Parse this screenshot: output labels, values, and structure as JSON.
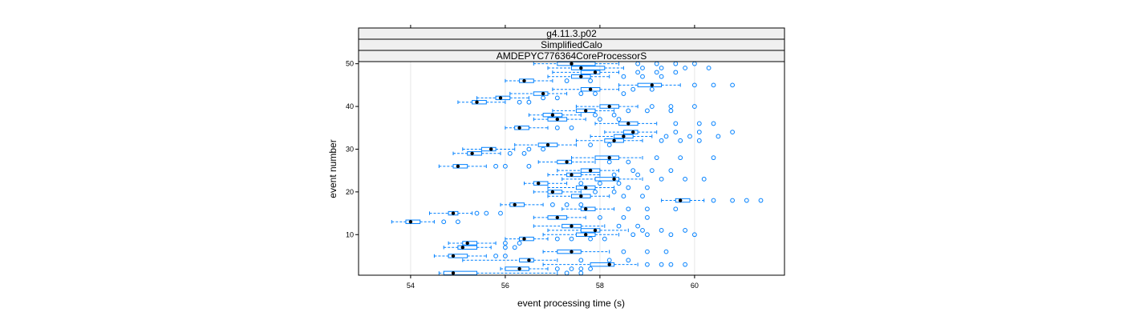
{
  "chart_data": {
    "type": "boxplot",
    "strips": [
      "g4.11.3.p02",
      "SimplifiedCalo",
      "AMDEPYC776364CoreProcessorS"
    ],
    "xlabel": "event processing time (s)",
    "ylabel": "event number",
    "xlim": [
      52.9,
      61.9
    ],
    "ylim": [
      0.5,
      50.5
    ],
    "x_ticks": [
      54,
      56,
      58,
      60
    ],
    "y_ticks": [
      10,
      20,
      30,
      40,
      50
    ],
    "grid": "vertical",
    "colors": {
      "box": "#0080ff",
      "median": "#000000",
      "strip": "#f0f0f0"
    },
    "rows": [
      {
        "event": 1,
        "min": 54.6,
        "q1": 54.7,
        "median": 54.9,
        "q3": 55.4,
        "max": 57.1,
        "outliers": [
          57.3,
          57.6
        ]
      },
      {
        "event": 2,
        "min": 55.9,
        "q1": 56.0,
        "median": 56.3,
        "q3": 56.5,
        "max": 56.9,
        "outliers": [
          57.1,
          57.4,
          57.6,
          57.8
        ]
      },
      {
        "event": 3,
        "min": 56.8,
        "q1": 57.8,
        "median": 58.2,
        "q3": 58.3,
        "max": 58.8,
        "outliers": [
          59.0,
          59.3,
          59.5,
          59.8
        ]
      },
      {
        "event": 4,
        "min": 55.1,
        "q1": 56.3,
        "median": 56.5,
        "q3": 56.6,
        "max": 57.1,
        "outliers": [
          57.6,
          58.2,
          58.6
        ]
      },
      {
        "event": 5,
        "min": 54.5,
        "q1": 54.8,
        "median": 54.9,
        "q3": 55.2,
        "max": 55.6,
        "outliers": [
          55.8,
          56.0
        ]
      },
      {
        "event": 6,
        "min": 56.8,
        "q1": 57.1,
        "median": 57.4,
        "q3": 57.6,
        "max": 58.2,
        "outliers": [
          58.5,
          59.0,
          59.4
        ]
      },
      {
        "event": 7,
        "min": 54.7,
        "q1": 55.0,
        "median": 55.1,
        "q3": 55.4,
        "max": 55.7,
        "outliers": [
          56.0,
          56.2
        ]
      },
      {
        "event": 8,
        "min": 54.8,
        "q1": 55.1,
        "median": 55.2,
        "q3": 55.4,
        "max": 55.8,
        "outliers": [
          56.0,
          56.3
        ]
      },
      {
        "event": 9,
        "min": 56.0,
        "q1": 56.3,
        "median": 56.4,
        "q3": 56.6,
        "max": 56.9,
        "outliers": [
          57.1,
          57.4,
          57.8,
          58.1
        ]
      },
      {
        "event": 10,
        "min": 56.8,
        "q1": 57.5,
        "median": 57.7,
        "q3": 57.9,
        "max": 58.4,
        "outliers": [
          58.7,
          59.0,
          59.5,
          60.0
        ]
      },
      {
        "event": 11,
        "min": 56.9,
        "q1": 57.6,
        "median": 57.9,
        "q3": 58.0,
        "max": 58.6,
        "outliers": [
          58.9,
          59.3,
          59.8
        ]
      },
      {
        "event": 12,
        "min": 56.6,
        "q1": 57.2,
        "median": 57.4,
        "q3": 57.6,
        "max": 58.1,
        "outliers": [
          58.4,
          58.8
        ]
      },
      {
        "event": 13,
        "min": 53.6,
        "q1": 53.9,
        "median": 54.0,
        "q3": 54.2,
        "max": 54.5,
        "outliers": [
          54.7,
          55.0
        ]
      },
      {
        "event": 14,
        "min": 56.6,
        "q1": 56.9,
        "median": 57.1,
        "q3": 57.3,
        "max": 57.7,
        "outliers": [
          58.0,
          58.5,
          59.0
        ]
      },
      {
        "event": 15,
        "min": 54.4,
        "q1": 54.8,
        "median": 54.9,
        "q3": 55.0,
        "max": 55.3,
        "outliers": [
          55.4,
          55.6,
          55.9
        ]
      },
      {
        "event": 16,
        "min": 57.2,
        "q1": 57.6,
        "median": 57.7,
        "q3": 57.9,
        "max": 58.3,
        "outliers": [
          58.6,
          59.0,
          59.6
        ]
      },
      {
        "event": 17,
        "min": 55.9,
        "q1": 56.1,
        "median": 56.2,
        "q3": 56.4,
        "max": 56.8,
        "outliers": [
          57.0,
          57.3,
          57.6
        ]
      },
      {
        "event": 18,
        "min": 59.3,
        "q1": 59.6,
        "median": 59.7,
        "q3": 59.9,
        "max": 60.2,
        "outliers": [
          60.4,
          60.8,
          61.1,
          61.4
        ]
      },
      {
        "event": 19,
        "min": 56.9,
        "q1": 57.4,
        "median": 57.6,
        "q3": 57.8,
        "max": 58.2,
        "outliers": [
          58.5,
          58.9
        ]
      },
      {
        "event": 20,
        "min": 56.6,
        "q1": 56.9,
        "median": 57.0,
        "q3": 57.2,
        "max": 57.6,
        "outliers": [
          57.9,
          58.3
        ]
      },
      {
        "event": 21,
        "min": 56.9,
        "q1": 57.5,
        "median": 57.7,
        "q3": 57.9,
        "max": 58.3,
        "outliers": [
          58.6,
          59.0
        ]
      },
      {
        "event": 22,
        "min": 56.4,
        "q1": 56.6,
        "median": 56.7,
        "q3": 56.9,
        "max": 57.3,
        "outliers": [
          57.6,
          58.0,
          58.4
        ]
      },
      {
        "event": 23,
        "min": 57.2,
        "q1": 57.9,
        "median": 58.3,
        "q3": 58.4,
        "max": 58.9,
        "outliers": [
          59.3,
          59.8,
          60.2
        ]
      },
      {
        "event": 24,
        "min": 56.9,
        "q1": 57.3,
        "median": 57.4,
        "q3": 57.6,
        "max": 58.0,
        "outliers": [
          58.3,
          58.8
        ]
      },
      {
        "event": 25,
        "min": 57.1,
        "q1": 57.6,
        "median": 57.8,
        "q3": 58.0,
        "max": 58.4,
        "outliers": [
          58.7,
          59.1,
          59.5
        ]
      },
      {
        "event": 26,
        "min": 54.6,
        "q1": 54.9,
        "median": 55.0,
        "q3": 55.2,
        "max": 55.6,
        "outliers": [
          55.8,
          56.0,
          56.5
        ]
      },
      {
        "event": 27,
        "min": 56.7,
        "q1": 57.1,
        "median": 57.3,
        "q3": 57.4,
        "max": 57.9,
        "outliers": [
          58.2,
          58.6
        ]
      },
      {
        "event": 28,
        "min": 57.4,
        "q1": 57.9,
        "median": 58.2,
        "q3": 58.4,
        "max": 58.9,
        "outliers": [
          59.2,
          59.7,
          60.4
        ]
      },
      {
        "event": 29,
        "min": 54.9,
        "q1": 55.2,
        "median": 55.3,
        "q3": 55.5,
        "max": 55.9,
        "outliers": [
          56.1,
          56.4
        ]
      },
      {
        "event": 30,
        "min": 55.1,
        "q1": 55.5,
        "median": 55.7,
        "q3": 55.8,
        "max": 56.2,
        "outliers": [
          56.5,
          56.8
        ]
      },
      {
        "event": 31,
        "min": 56.2,
        "q1": 56.7,
        "median": 56.9,
        "q3": 57.1,
        "max": 57.5,
        "outliers": [
          57.8,
          58.2
        ]
      },
      {
        "event": 32,
        "min": 57.5,
        "q1": 58.1,
        "median": 58.3,
        "q3": 58.5,
        "max": 58.9,
        "outliers": [
          59.3,
          59.7,
          60.1
        ]
      },
      {
        "event": 33,
        "min": 57.8,
        "q1": 58.3,
        "median": 58.5,
        "q3": 58.7,
        "max": 59.1,
        "outliers": [
          59.4,
          59.9,
          60.5
        ]
      },
      {
        "event": 34,
        "min": 58.1,
        "q1": 58.5,
        "median": 58.7,
        "q3": 58.8,
        "max": 59.2,
        "outliers": [
          59.6,
          60.1,
          60.8
        ]
      },
      {
        "event": 35,
        "min": 56.0,
        "q1": 56.2,
        "median": 56.3,
        "q3": 56.5,
        "max": 56.9,
        "outliers": [
          57.1,
          57.4
        ]
      },
      {
        "event": 36,
        "min": 57.9,
        "q1": 58.4,
        "median": 58.6,
        "q3": 58.8,
        "max": 59.2,
        "outliers": [
          59.6,
          60.1,
          60.4
        ]
      },
      {
        "event": 37,
        "min": 56.6,
        "q1": 56.9,
        "median": 57.1,
        "q3": 57.3,
        "max": 57.7,
        "outliers": [
          58.0,
          58.4
        ]
      },
      {
        "event": 38,
        "min": 56.5,
        "q1": 56.8,
        "median": 57.0,
        "q3": 57.2,
        "max": 57.6,
        "outliers": [
          57.9,
          58.3
        ]
      },
      {
        "event": 39,
        "min": 57.0,
        "q1": 57.5,
        "median": 57.7,
        "q3": 57.9,
        "max": 58.3,
        "outliers": [
          58.6,
          59.0,
          59.5
        ]
      },
      {
        "event": 40,
        "min": 57.5,
        "q1": 58.0,
        "median": 58.2,
        "q3": 58.4,
        "max": 58.8,
        "outliers": [
          59.1,
          59.5,
          60.0
        ]
      },
      {
        "event": 41,
        "min": 55.0,
        "q1": 55.3,
        "median": 55.4,
        "q3": 55.6,
        "max": 56.0,
        "outliers": [
          56.3,
          56.5
        ]
      },
      {
        "event": 42,
        "min": 55.4,
        "q1": 55.8,
        "median": 55.9,
        "q3": 56.1,
        "max": 56.5,
        "outliers": [
          56.8,
          57.1
        ]
      },
      {
        "event": 43,
        "min": 56.1,
        "q1": 56.6,
        "median": 56.8,
        "q3": 56.9,
        "max": 57.3,
        "outliers": [
          57.6,
          57.9,
          58.5
        ]
      },
      {
        "event": 44,
        "min": 57.0,
        "q1": 57.6,
        "median": 57.8,
        "q3": 58.0,
        "max": 58.4,
        "outliers": [
          58.7,
          59.1
        ]
      },
      {
        "event": 45,
        "min": 58.4,
        "q1": 58.8,
        "median": 59.1,
        "q3": 59.3,
        "max": 59.7,
        "outliers": [
          60.0,
          60.4,
          60.8
        ]
      },
      {
        "event": 46,
        "min": 56.0,
        "q1": 56.3,
        "median": 56.4,
        "q3": 56.6,
        "max": 57.0,
        "outliers": [
          57.3,
          57.8
        ]
      },
      {
        "event": 47,
        "min": 56.9,
        "q1": 57.4,
        "median": 57.6,
        "q3": 57.8,
        "max": 58.2,
        "outliers": [
          58.5,
          58.9,
          59.3
        ]
      },
      {
        "event": 48,
        "min": 57.0,
        "q1": 57.6,
        "median": 57.9,
        "q3": 58.0,
        "max": 58.4,
        "outliers": [
          58.8,
          59.2,
          59.6
        ]
      },
      {
        "event": 49,
        "min": 56.9,
        "q1": 57.4,
        "median": 57.6,
        "q3": 58.1,
        "max": 58.5,
        "outliers": [
          58.9,
          59.3,
          59.8,
          60.3
        ]
      },
      {
        "event": 50,
        "min": 56.6,
        "q1": 57.1,
        "median": 57.4,
        "q3": 57.9,
        "max": 58.4,
        "outliers": [
          58.8,
          59.2,
          59.6,
          60.0
        ]
      }
    ]
  }
}
